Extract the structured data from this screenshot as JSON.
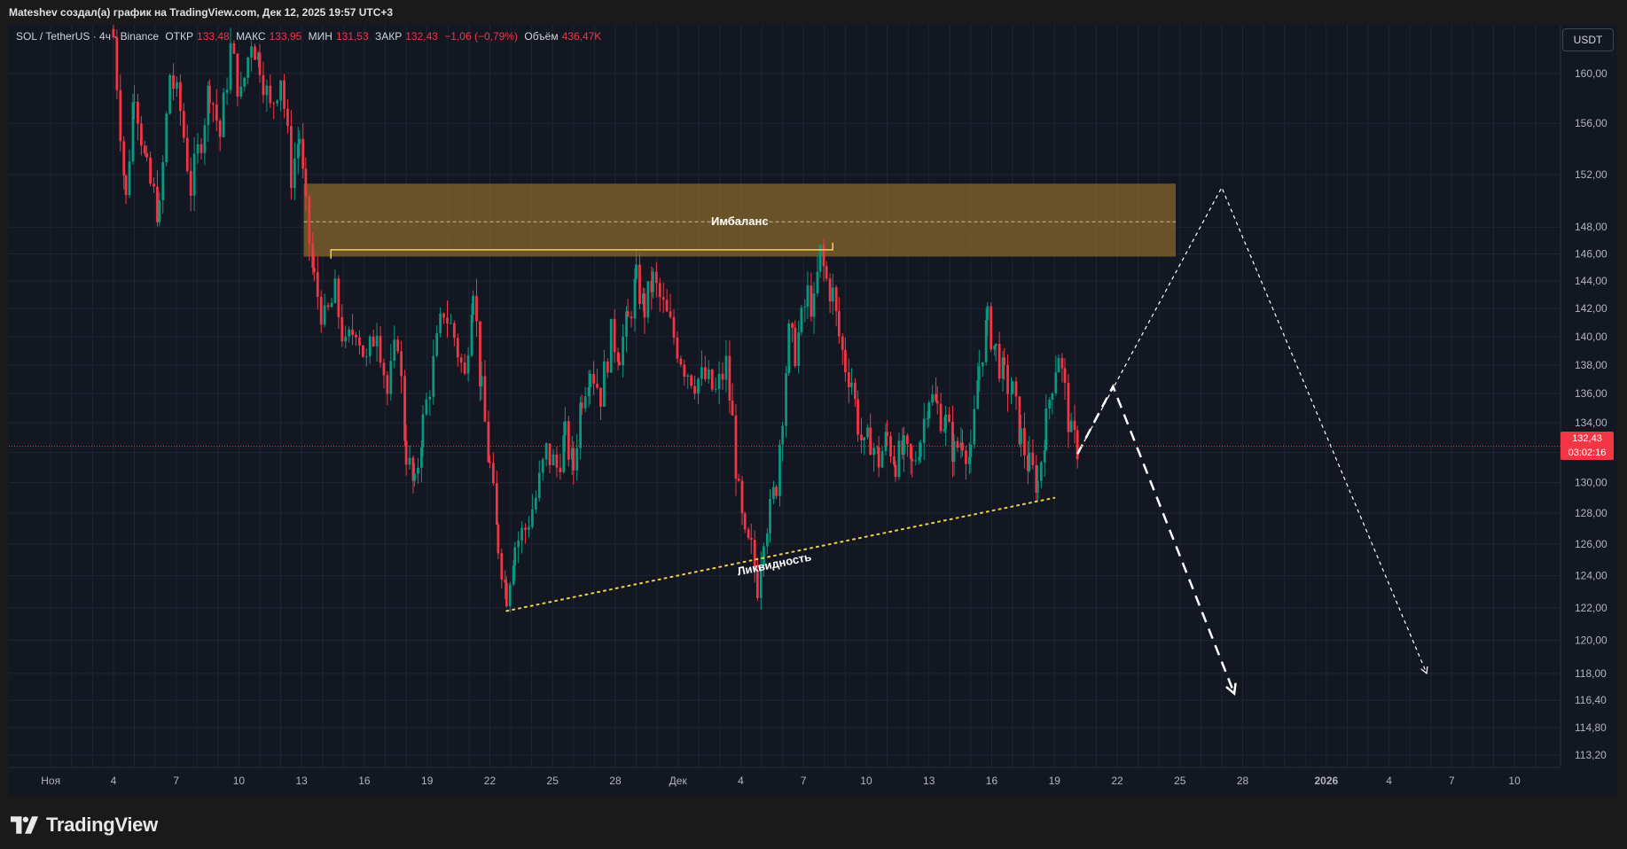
{
  "header": {
    "title": "Mateshev создал(а) график на TradingView.com, Дек 12, 2025 19:57 UTC+3"
  },
  "legend": {
    "symbol": "SOL / TetherUS · 4ч · Binance",
    "open_label": "ОТКР",
    "open_value": "133,48",
    "high_label": "МАКС",
    "high_value": "133,95",
    "low_label": "МИН",
    "low_value": "131,53",
    "close_label": "ЗАКР",
    "close_value": "132,43",
    "change": "−1,06 (−0,79%)",
    "volume_label": "Объём",
    "volume_value": "436,47K"
  },
  "currency_button": "USDT",
  "last_price": {
    "price": "132,43",
    "countdown": "03:02:16"
  },
  "brand": {
    "name": "TradingView",
    "icon": "tradingview-logo-icon"
  },
  "colors": {
    "up": "#089981",
    "down": "#f23645",
    "zone": "#8b6a2b",
    "background": "#131722",
    "grid": "#1f2433",
    "axis_text": "#b2b5be"
  },
  "chart_data": {
    "type": "candlestick",
    "y_scale": "log",
    "ylim": [
      112.5,
      164.0
    ],
    "y_ticks": [
      "160,00",
      "156,00",
      "152,00",
      "148,00",
      "146,00",
      "144,00",
      "142,00",
      "140,00",
      "138,00",
      "136,00",
      "134,00",
      "132,00",
      "130,00",
      "128,00",
      "126,00",
      "124,00",
      "122,00",
      "120,00",
      "118,00",
      "116,40",
      "114,80",
      "113,20"
    ],
    "y_tick_values": [
      160,
      156,
      152,
      148,
      146,
      144,
      142,
      140,
      138,
      136,
      134,
      132,
      130,
      128,
      126,
      124,
      122,
      120,
      118,
      116.4,
      114.8,
      113.2
    ],
    "x_ticks": [
      "Ноя",
      "4",
      "7",
      "10",
      "13",
      "16",
      "19",
      "22",
      "25",
      "28",
      "Дек",
      "4",
      "7",
      "10",
      "13",
      "16",
      "19",
      "22",
      "25",
      "28",
      "2026",
      "4",
      "7",
      "10"
    ],
    "x_tick_days": [
      1,
      4,
      7,
      10,
      13,
      16,
      19,
      22,
      25,
      28,
      31,
      34,
      37,
      40,
      43,
      46,
      49,
      52,
      55,
      58,
      62,
      65,
      68,
      71
    ],
    "x_range_days": [
      -1.0,
      73.2
    ],
    "price_path": [
      [
        4.0,
        163
      ],
      [
        4.6,
        150
      ],
      [
        5.0,
        159
      ],
      [
        5.6,
        152
      ],
      [
        6.2,
        149
      ],
      [
        6.7,
        160
      ],
      [
        7.2,
        157
      ],
      [
        7.7,
        151
      ],
      [
        8.2,
        155
      ],
      [
        8.6,
        159
      ],
      [
        9.1,
        155
      ],
      [
        9.6,
        162
      ],
      [
        10.1,
        158
      ],
      [
        10.6,
        163
      ],
      [
        11.0,
        161
      ],
      [
        11.5,
        157
      ],
      [
        12.0,
        160
      ],
      [
        12.5,
        152
      ],
      [
        12.9,
        155
      ],
      [
        13.2,
        149
      ],
      [
        13.6,
        144
      ],
      [
        14.1,
        141
      ],
      [
        14.6,
        143
      ],
      [
        15.1,
        139
      ],
      [
        15.6,
        141
      ],
      [
        16.1,
        138
      ],
      [
        16.6,
        141
      ],
      [
        17.1,
        136
      ],
      [
        17.6,
        140
      ],
      [
        18.0,
        132
      ],
      [
        18.4,
        129.5
      ],
      [
        18.8,
        134
      ],
      [
        19.3,
        138
      ],
      [
        19.8,
        142
      ],
      [
        20.3,
        140
      ],
      [
        20.8,
        137
      ],
      [
        21.2,
        144
      ],
      [
        21.6,
        136
      ],
      [
        22.0,
        131
      ],
      [
        22.4,
        126
      ],
      [
        22.8,
        123
      ],
      [
        23.2,
        126
      ],
      [
        23.7,
        127
      ],
      [
        24.2,
        129
      ],
      [
        24.7,
        132
      ],
      [
        25.2,
        131
      ],
      [
        25.6,
        133
      ],
      [
        26.0,
        131
      ],
      [
        26.4,
        136
      ],
      [
        26.8,
        138
      ],
      [
        27.3,
        136
      ],
      [
        27.8,
        140
      ],
      [
        28.2,
        139
      ],
      [
        28.6,
        141
      ],
      [
        29.0,
        144
      ],
      [
        29.4,
        142
      ],
      [
        29.8,
        144
      ],
      [
        30.3,
        142
      ],
      [
        30.8,
        140
      ],
      [
        31.3,
        138
      ],
      [
        31.8,
        137
      ],
      [
        32.3,
        137
      ],
      [
        32.8,
        136
      ],
      [
        33.3,
        138
      ],
      [
        33.6,
        134
      ],
      [
        33.9,
        129
      ],
      [
        34.2,
        126
      ],
      [
        34.5,
        125.5
      ],
      [
        34.8,
        123.5
      ],
      [
        35.1,
        127
      ],
      [
        35.4,
        128
      ],
      [
        35.7,
        130
      ],
      [
        36.0,
        135
      ],
      [
        36.3,
        140
      ],
      [
        36.6,
        139
      ],
      [
        36.9,
        141
      ],
      [
        37.2,
        143
      ],
      [
        37.5,
        142
      ],
      [
        37.8,
        146
      ],
      [
        38.1,
        144
      ],
      [
        38.4,
        143
      ],
      [
        38.7,
        140
      ],
      [
        39.0,
        138
      ],
      [
        39.3,
        137
      ],
      [
        39.6,
        134
      ],
      [
        39.9,
        132
      ],
      [
        40.2,
        133
      ],
      [
        40.6,
        131.5
      ],
      [
        41.0,
        133
      ],
      [
        41.4,
        131.5
      ],
      [
        41.8,
        132
      ],
      [
        42.2,
        131
      ],
      [
        42.6,
        133
      ],
      [
        43.0,
        136
      ],
      [
        43.4,
        135
      ],
      [
        43.8,
        134
      ],
      [
        44.2,
        132
      ],
      [
        44.6,
        133
      ],
      [
        45.0,
        131.5
      ],
      [
        45.4,
        138
      ],
      [
        45.8,
        141
      ],
      [
        46.2,
        139
      ],
      [
        46.6,
        137
      ],
      [
        47.0,
        136
      ],
      [
        47.4,
        133
      ],
      [
        47.8,
        131
      ],
      [
        48.2,
        130
      ],
      [
        48.6,
        134
      ],
      [
        48.9,
        137
      ],
      [
        49.2,
        139
      ],
      [
        49.5,
        136
      ],
      [
        49.8,
        133
      ],
      [
        50.1,
        132.4
      ]
    ],
    "annotations": {
      "imbalance_zone": {
        "from_day": 13.1,
        "to_day": 54.8,
        "price_low": 145.8,
        "price_high": 151.3,
        "mid_price": 148.4,
        "label": "Имбаланс"
      },
      "resistance_line": {
        "from_day": 14.4,
        "to_day": 38.4,
        "price": 146.3
      },
      "liquidity_line": {
        "from": [
          22.8,
          121.8
        ],
        "to": [
          49.0,
          129.0
        ],
        "label": "Ликвидность"
      },
      "forecast_bearish": [
        [
          50.1,
          131.9
        ],
        [
          51.8,
          136.5
        ],
        [
          57.6,
          116.8
        ]
      ],
      "forecast_bullish": [
        [
          50.1,
          131.9
        ],
        [
          57.0,
          151.0
        ],
        [
          66.8,
          118.0
        ]
      ]
    }
  }
}
